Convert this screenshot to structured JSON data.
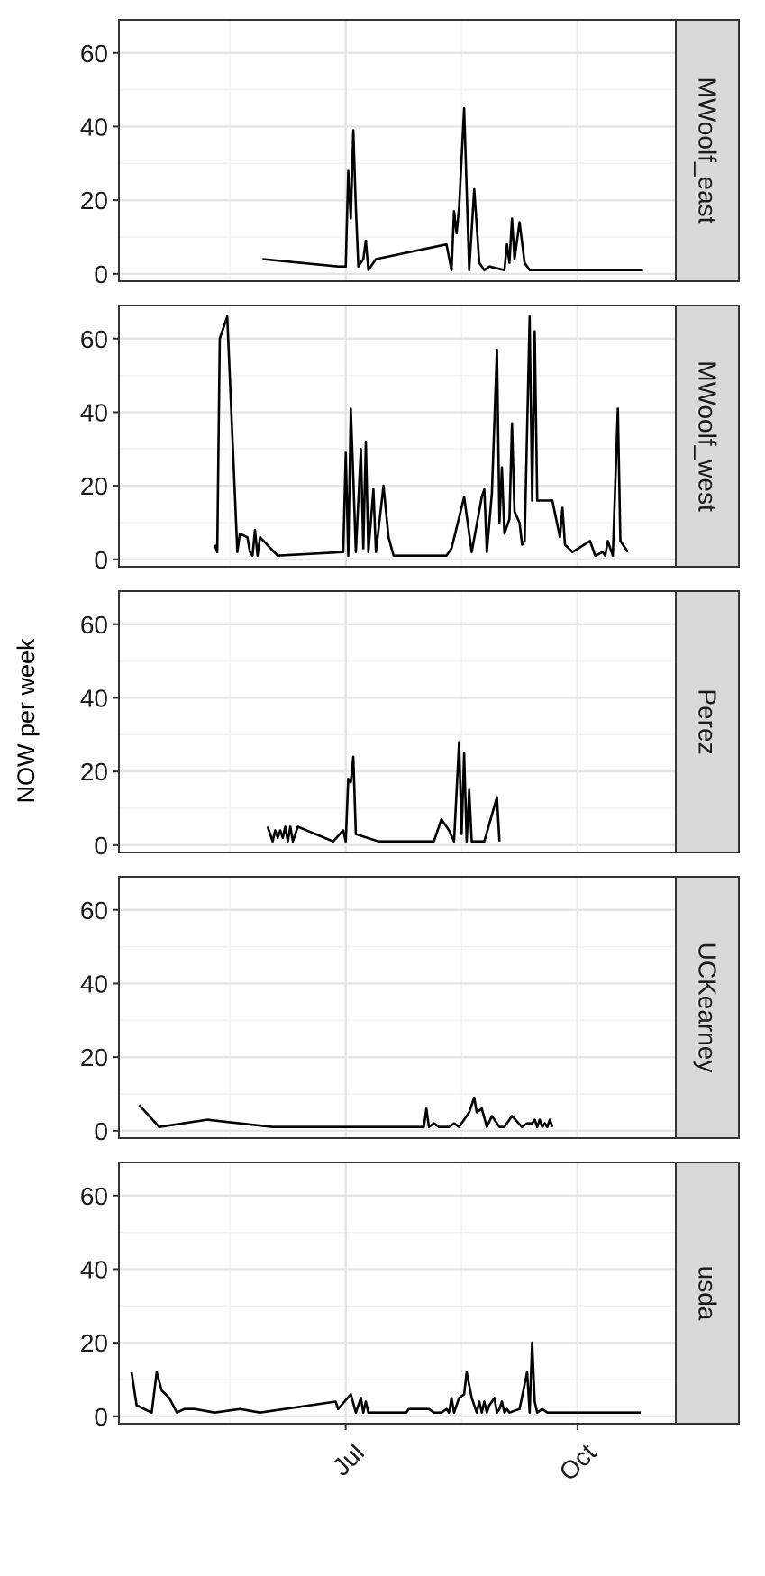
{
  "chart_data": {
    "type": "line",
    "ylabel": "NOW per week",
    "xlabel": "",
    "x_ticks": [
      "Jul",
      "Oct"
    ],
    "y_ticks": [
      0,
      20,
      40,
      60
    ],
    "ylim": [
      -2,
      69
    ],
    "xlim": [
      "2019-04-02",
      "2019-11-09"
    ],
    "grid": true,
    "facets": [
      {
        "label": "MWoolf_east",
        "points": [
          [
            "2019-05-29",
            4
          ],
          [
            "2019-06-28",
            2
          ],
          [
            "2019-07-01",
            2
          ],
          [
            "2019-07-02",
            28
          ],
          [
            "2019-07-03",
            15
          ],
          [
            "2019-07-04",
            39
          ],
          [
            "2019-07-05",
            18
          ],
          [
            "2019-07-06",
            2
          ],
          [
            "2019-07-08",
            4
          ],
          [
            "2019-07-09",
            9
          ],
          [
            "2019-07-10",
            1
          ],
          [
            "2019-07-13",
            4
          ],
          [
            "2019-08-10",
            8
          ],
          [
            "2019-08-12",
            1
          ],
          [
            "2019-08-13",
            17
          ],
          [
            "2019-08-14",
            11
          ],
          [
            "2019-08-15",
            18
          ],
          [
            "2019-08-17",
            45
          ],
          [
            "2019-08-19",
            1
          ],
          [
            "2019-08-21",
            23
          ],
          [
            "2019-08-23",
            3
          ],
          [
            "2019-08-25",
            1
          ],
          [
            "2019-08-27",
            2
          ],
          [
            "2019-09-02",
            1
          ],
          [
            "2019-09-03",
            8
          ],
          [
            "2019-09-04",
            3
          ],
          [
            "2019-09-05",
            15
          ],
          [
            "2019-09-06",
            4
          ],
          [
            "2019-09-08",
            14
          ],
          [
            "2019-09-10",
            3
          ],
          [
            "2019-09-12",
            1
          ],
          [
            "2019-10-27",
            1
          ]
        ]
      },
      {
        "label": "MWoolf_west",
        "points": [
          [
            "2019-05-10",
            4
          ],
          [
            "2019-05-11",
            2
          ],
          [
            "2019-05-12",
            60
          ],
          [
            "2019-05-15",
            66
          ],
          [
            "2019-05-19",
            2
          ],
          [
            "2019-05-20",
            7
          ],
          [
            "2019-05-23",
            6
          ],
          [
            "2019-05-24",
            2
          ],
          [
            "2019-05-25",
            1
          ],
          [
            "2019-05-26",
            8
          ],
          [
            "2019-05-27",
            1
          ],
          [
            "2019-05-28",
            6
          ],
          [
            "2019-06-04",
            1
          ],
          [
            "2019-06-30",
            2
          ],
          [
            "2019-07-01",
            29
          ],
          [
            "2019-07-02",
            1
          ],
          [
            "2019-07-03",
            41
          ],
          [
            "2019-07-04",
            22
          ],
          [
            "2019-07-05",
            2
          ],
          [
            "2019-07-07",
            30
          ],
          [
            "2019-07-08",
            3
          ],
          [
            "2019-07-09",
            32
          ],
          [
            "2019-07-10",
            2
          ],
          [
            "2019-07-12",
            19
          ],
          [
            "2019-07-13",
            2
          ],
          [
            "2019-07-16",
            20
          ],
          [
            "2019-07-18",
            6
          ],
          [
            "2019-07-20",
            1
          ],
          [
            "2019-08-10",
            1
          ],
          [
            "2019-08-12",
            3
          ],
          [
            "2019-08-17",
            17
          ],
          [
            "2019-08-20",
            2
          ],
          [
            "2019-08-24",
            17
          ],
          [
            "2019-08-25",
            19
          ],
          [
            "2019-08-26",
            2
          ],
          [
            "2019-08-28",
            18
          ],
          [
            "2019-08-30",
            57
          ],
          [
            "2019-08-31",
            10
          ],
          [
            "2019-09-01",
            25
          ],
          [
            "2019-09-02",
            7
          ],
          [
            "2019-09-04",
            11
          ],
          [
            "2019-09-05",
            37
          ],
          [
            "2019-09-06",
            13
          ],
          [
            "2019-09-08",
            10
          ],
          [
            "2019-09-09",
            4
          ],
          [
            "2019-09-10",
            5
          ],
          [
            "2019-09-12",
            66
          ],
          [
            "2019-09-13",
            16
          ],
          [
            "2019-09-14",
            62
          ],
          [
            "2019-09-15",
            16
          ],
          [
            "2019-09-21",
            16
          ],
          [
            "2019-09-24",
            6
          ],
          [
            "2019-09-25",
            14
          ],
          [
            "2019-09-26",
            4
          ],
          [
            "2019-09-29",
            2
          ],
          [
            "2019-10-06",
            5
          ],
          [
            "2019-10-08",
            1
          ],
          [
            "2019-10-11",
            2
          ],
          [
            "2019-10-12",
            1
          ],
          [
            "2019-10-13",
            5
          ],
          [
            "2019-10-15",
            1
          ],
          [
            "2019-10-17",
            41
          ],
          [
            "2019-10-18",
            5
          ],
          [
            "2019-10-21",
            2
          ]
        ]
      },
      {
        "label": "Perez",
        "points": [
          [
            "2019-05-31",
            5
          ],
          [
            "2019-06-01",
            3
          ],
          [
            "2019-06-02",
            1
          ],
          [
            "2019-06-03",
            4
          ],
          [
            "2019-06-04",
            2
          ],
          [
            "2019-06-05",
            4
          ],
          [
            "2019-06-06",
            2
          ],
          [
            "2019-06-07",
            5
          ],
          [
            "2019-06-08",
            1
          ],
          [
            "2019-06-09",
            5
          ],
          [
            "2019-06-10",
            1
          ],
          [
            "2019-06-12",
            5
          ],
          [
            "2019-06-26",
            1
          ],
          [
            "2019-06-30",
            4
          ],
          [
            "2019-07-01",
            1
          ],
          [
            "2019-07-02",
            18
          ],
          [
            "2019-07-03",
            17
          ],
          [
            "2019-07-04",
            24
          ],
          [
            "2019-07-05",
            3
          ],
          [
            "2019-07-14",
            1
          ],
          [
            "2019-08-05",
            1
          ],
          [
            "2019-08-08",
            7
          ],
          [
            "2019-08-11",
            4
          ],
          [
            "2019-08-13",
            1
          ],
          [
            "2019-08-15",
            28
          ],
          [
            "2019-08-16",
            3
          ],
          [
            "2019-08-17",
            25
          ],
          [
            "2019-08-18",
            1
          ],
          [
            "2019-08-19",
            15
          ],
          [
            "2019-08-20",
            1
          ],
          [
            "2019-08-25",
            1
          ],
          [
            "2019-08-30",
            13
          ],
          [
            "2019-08-31",
            1
          ]
        ]
      },
      {
        "label": "UCKearney",
        "points": [
          [
            "2019-04-10",
            7
          ],
          [
            "2019-04-18",
            1
          ],
          [
            "2019-05-07",
            3
          ],
          [
            "2019-06-02",
            1
          ],
          [
            "2019-08-01",
            1
          ],
          [
            "2019-08-02",
            6
          ],
          [
            "2019-08-03",
            1
          ],
          [
            "2019-08-05",
            2
          ],
          [
            "2019-08-07",
            1
          ],
          [
            "2019-08-11",
            1
          ],
          [
            "2019-08-13",
            2
          ],
          [
            "2019-08-15",
            1
          ],
          [
            "2019-08-19",
            5
          ],
          [
            "2019-08-21",
            9
          ],
          [
            "2019-08-22",
            5
          ],
          [
            "2019-08-24",
            6
          ],
          [
            "2019-08-26",
            1
          ],
          [
            "2019-08-28",
            4
          ],
          [
            "2019-08-31",
            1
          ],
          [
            "2019-09-02",
            1
          ],
          [
            "2019-09-05",
            4
          ],
          [
            "2019-09-09",
            1
          ],
          [
            "2019-09-11",
            2
          ],
          [
            "2019-09-13",
            2
          ],
          [
            "2019-09-14",
            3
          ],
          [
            "2019-09-15",
            1
          ],
          [
            "2019-09-16",
            3
          ],
          [
            "2019-09-17",
            1
          ],
          [
            "2019-09-18",
            2
          ],
          [
            "2019-09-19",
            1
          ],
          [
            "2019-09-20",
            3
          ],
          [
            "2019-09-21",
            1
          ]
        ]
      },
      {
        "label": "usda",
        "points": [
          [
            "2019-04-07",
            12
          ],
          [
            "2019-04-09",
            3
          ],
          [
            "2019-04-12",
            2
          ],
          [
            "2019-04-15",
            1
          ],
          [
            "2019-04-17",
            12
          ],
          [
            "2019-04-19",
            7
          ],
          [
            "2019-04-22",
            5
          ],
          [
            "2019-04-25",
            1
          ],
          [
            "2019-04-28",
            2
          ],
          [
            "2019-05-02",
            2
          ],
          [
            "2019-05-10",
            1
          ],
          [
            "2019-05-20",
            2
          ],
          [
            "2019-05-28",
            1
          ],
          [
            "2019-06-27",
            4
          ],
          [
            "2019-06-28",
            2
          ],
          [
            "2019-07-03",
            6
          ],
          [
            "2019-07-05",
            1
          ],
          [
            "2019-07-07",
            5
          ],
          [
            "2019-07-08",
            1
          ],
          [
            "2019-07-09",
            4
          ],
          [
            "2019-07-10",
            1
          ],
          [
            "2019-07-25",
            1
          ],
          [
            "2019-07-26",
            2
          ],
          [
            "2019-08-03",
            2
          ],
          [
            "2019-08-05",
            1
          ],
          [
            "2019-08-08",
            1
          ],
          [
            "2019-08-10",
            2
          ],
          [
            "2019-08-11",
            1
          ],
          [
            "2019-08-12",
            5
          ],
          [
            "2019-08-13",
            1
          ],
          [
            "2019-08-15",
            5
          ],
          [
            "2019-08-17",
            6
          ],
          [
            "2019-08-18",
            12
          ],
          [
            "2019-08-20",
            5
          ],
          [
            "2019-08-21",
            3
          ],
          [
            "2019-08-22",
            1
          ],
          [
            "2019-08-23",
            4
          ],
          [
            "2019-08-24",
            1
          ],
          [
            "2019-08-25",
            4
          ],
          [
            "2019-08-26",
            1
          ],
          [
            "2019-08-27",
            3
          ],
          [
            "2019-08-29",
            5
          ],
          [
            "2019-08-30",
            1
          ],
          [
            "2019-08-31",
            2
          ],
          [
            "2019-09-01",
            4
          ],
          [
            "2019-09-02",
            1
          ],
          [
            "2019-09-03",
            2
          ],
          [
            "2019-09-04",
            1
          ],
          [
            "2019-09-08",
            2
          ],
          [
            "2019-09-11",
            12
          ],
          [
            "2019-09-12",
            1
          ],
          [
            "2019-09-13",
            20
          ],
          [
            "2019-09-14",
            4
          ],
          [
            "2019-09-15",
            1
          ],
          [
            "2019-09-17",
            2
          ],
          [
            "2019-09-19",
            1
          ],
          [
            "2019-10-26",
            1
          ]
        ]
      }
    ]
  }
}
